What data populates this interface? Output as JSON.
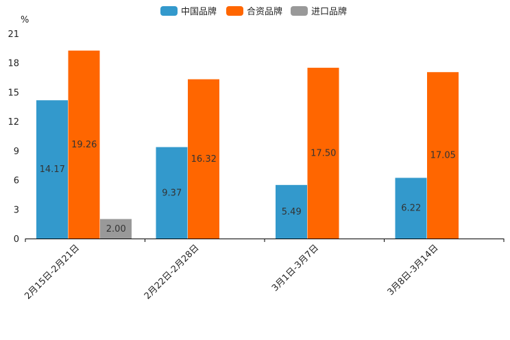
{
  "chart_data": {
    "type": "bar",
    "title": "",
    "ylabel": "%",
    "xlabel": "",
    "ylim": [
      0,
      21
    ],
    "yticks": [
      0,
      3,
      6,
      9,
      12,
      15,
      18,
      21
    ],
    "categories": [
      "2月15日-2月21日",
      "2月22日-2月28日",
      "3月1日-3月7日",
      "3月8日-3月14日"
    ],
    "series": [
      {
        "name": "中国品牌",
        "color": "#3399cc",
        "values": [
          14.17,
          9.37,
          5.49,
          6.22
        ],
        "labels": [
          "14.17",
          "9.37",
          "5.49",
          "6.22"
        ]
      },
      {
        "name": "合资品牌",
        "color": "#ff6600",
        "values": [
          19.26,
          16.32,
          17.5,
          17.05
        ],
        "labels": [
          "19.26",
          "16.32",
          "17.50",
          "17.05"
        ]
      },
      {
        "name": "进口品牌",
        "color": "#999999",
        "values": [
          2.0,
          null,
          null,
          null
        ],
        "labels": [
          "2.00",
          null,
          null,
          null
        ]
      }
    ],
    "legend_position": "top-center",
    "grid": false
  }
}
